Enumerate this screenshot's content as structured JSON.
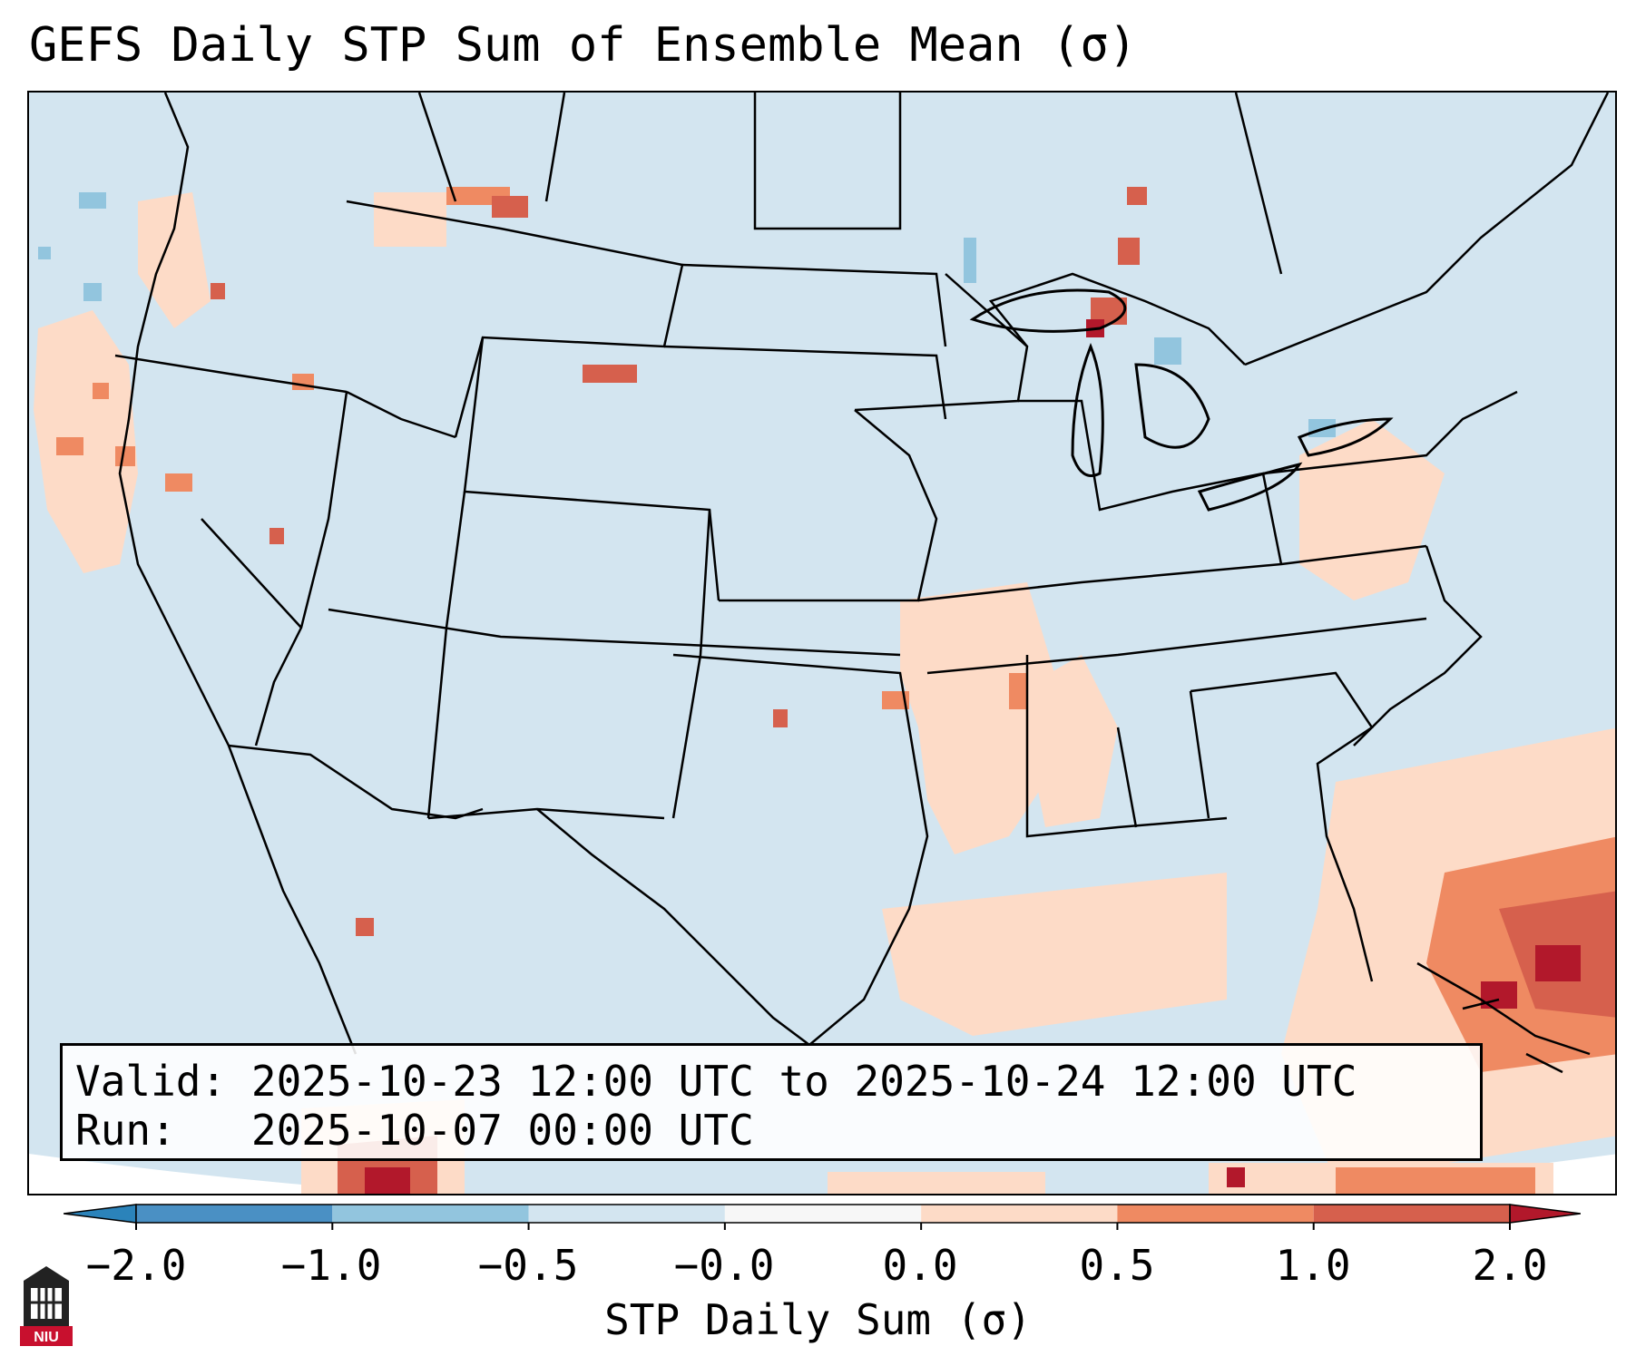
{
  "title": "GEFS Daily STP Sum of Ensemble Mean (σ)",
  "map": {
    "region": "Contiguous United States",
    "background_color": "#d3e5f0",
    "border_color": "#000000"
  },
  "info": {
    "valid_label": "Valid:",
    "valid_value": "2025-10-23 12:00 UTC to 2025-10-24 12:00 UTC",
    "run_label": "Run:",
    "run_value": "2025-10-07 00:00 UTC"
  },
  "colorbar": {
    "label": "STP Daily Sum (σ)",
    "ticks": [
      "−2.0",
      "−1.0",
      "−0.5",
      "−0.0",
      "0.0",
      "0.5",
      "1.0",
      "2.0"
    ],
    "colors": [
      "#2b83ba",
      "#4a90c4",
      "#92c5de",
      "#d3e5f0",
      "#f7f7f7",
      "#fddbc7",
      "#ef8a62",
      "#d6604d",
      "#b2182b"
    ]
  },
  "logo": {
    "text": "NIU",
    "icon": "university-tower-icon"
  }
}
